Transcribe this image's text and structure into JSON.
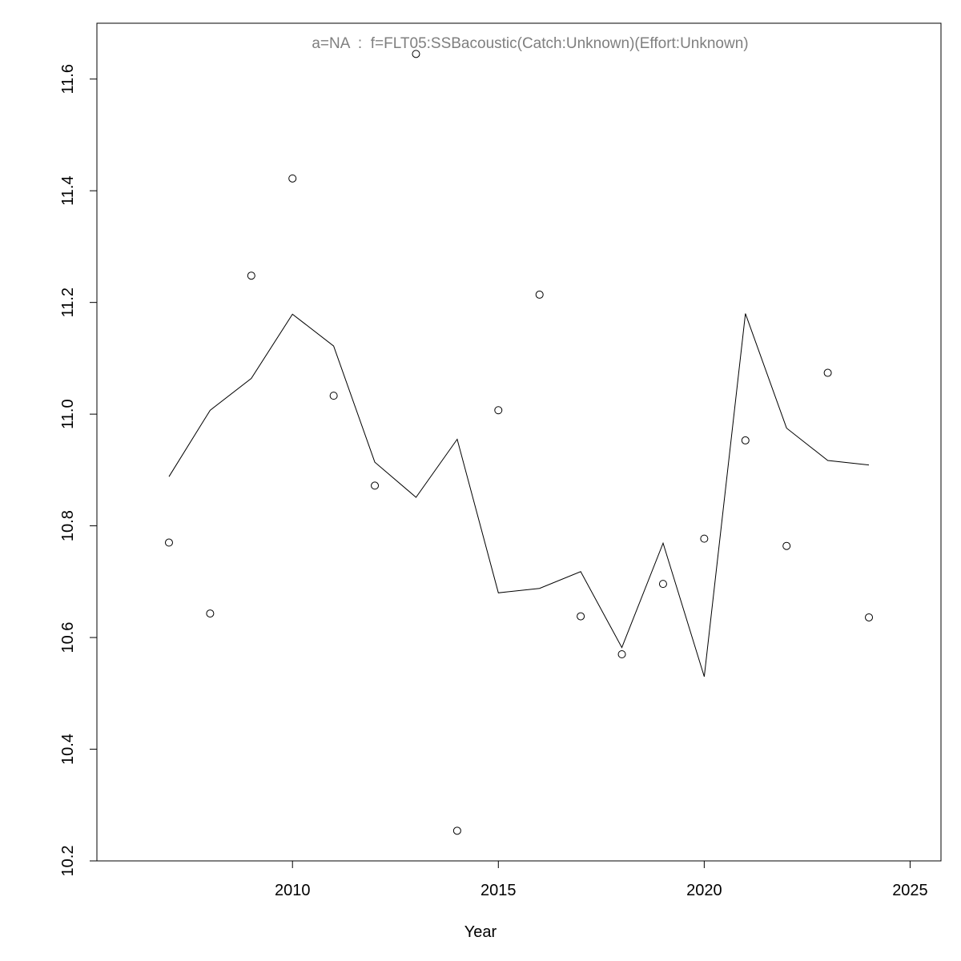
{
  "chart_data": {
    "type": "line",
    "title": "a=NA  :  f=FLT05:SSBacoustic(Catch:Unknown)(Effort:Unknown)",
    "xlabel": "Year",
    "ylabel": "",
    "xlim": [
      2005.25,
      2025.75
    ],
    "ylim": [
      10.2,
      11.7
    ],
    "x_ticks": [
      "2010",
      "2015",
      "2020",
      "2025"
    ],
    "y_ticks": [
      "10.2",
      "10.4",
      "10.6",
      "10.8",
      "11.0",
      "11.2",
      "11.4",
      "11.6"
    ],
    "grid": false,
    "legend": "none",
    "series": [
      {
        "style": "line",
        "x": [
          2007,
          2008,
          2009,
          2010,
          2011,
          2012,
          2013,
          2014,
          2015,
          2016,
          2017,
          2018,
          2019,
          2020,
          2021,
          2022,
          2023,
          2024
        ],
        "y": [
          10.888,
          11.007,
          11.064,
          11.179,
          11.122,
          10.914,
          10.851,
          10.955,
          10.68,
          10.688,
          10.718,
          10.582,
          10.769,
          10.53,
          11.18,
          10.975,
          10.917,
          10.909
        ]
      },
      {
        "style": "points",
        "x": [
          2007,
          2008,
          2009,
          2010,
          2011,
          2012,
          2013,
          2014,
          2015,
          2016,
          2017,
          2018,
          2019,
          2020,
          2021,
          2022,
          2023,
          2024
        ],
        "y": [
          10.77,
          10.643,
          11.248,
          11.422,
          11.033,
          10.872,
          11.645,
          10.254,
          11.007,
          11.214,
          10.638,
          10.57,
          10.696,
          10.777,
          10.953,
          10.764,
          11.074,
          10.636
        ]
      }
    ]
  }
}
